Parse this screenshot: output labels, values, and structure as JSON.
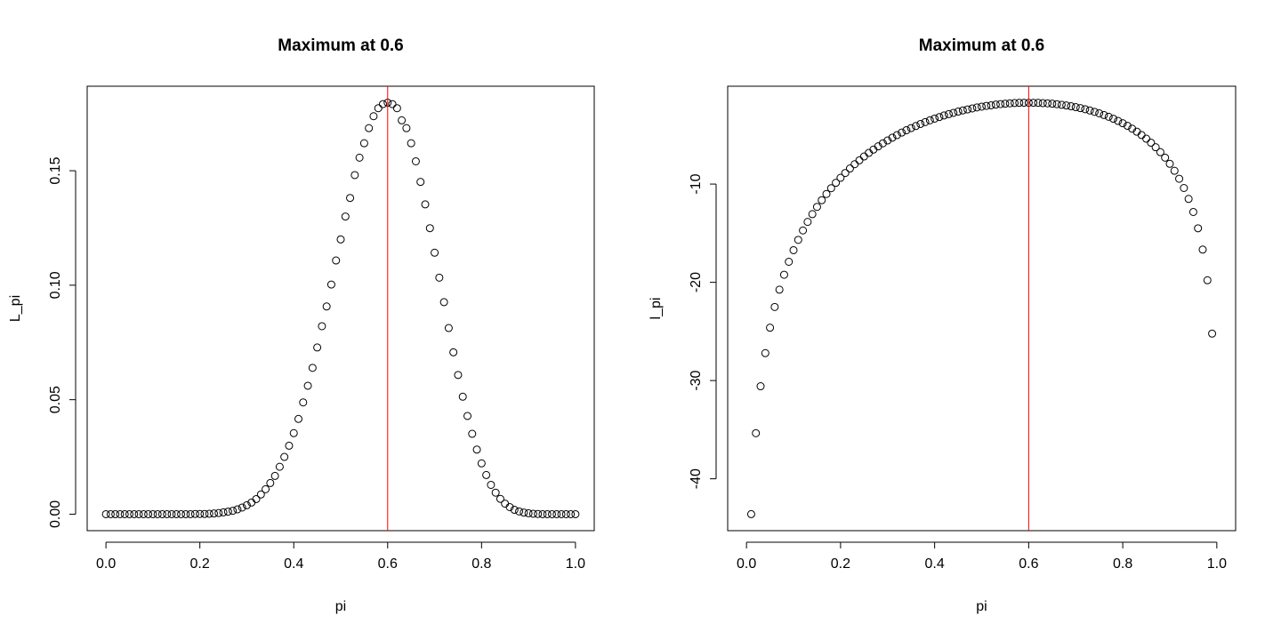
{
  "chart_data": [
    {
      "type": "scatter",
      "title": "Maximum at 0.6",
      "x_label": "pi",
      "y_label": "L_pi",
      "x": [
        0,
        0.01,
        0.02,
        0.03,
        0.04,
        0.05,
        0.06,
        0.07,
        0.08,
        0.09,
        0.1,
        0.11,
        0.12,
        0.13,
        0.14,
        0.15,
        0.16,
        0.17,
        0.18,
        0.19,
        0.2,
        0.21,
        0.22,
        0.23,
        0.24,
        0.25,
        0.26,
        0.27,
        0.28,
        0.29,
        0.3,
        0.31,
        0.32,
        0.33,
        0.34,
        0.35,
        0.36,
        0.37,
        0.38,
        0.39,
        0.4,
        0.41,
        0.42,
        0.43,
        0.44,
        0.45,
        0.46,
        0.47,
        0.48,
        0.49,
        0.5,
        0.51,
        0.52,
        0.53,
        0.54,
        0.55,
        0.56,
        0.57,
        0.58,
        0.59,
        0.6,
        0.61,
        0.62,
        0.63,
        0.64,
        0.65,
        0.66,
        0.67,
        0.68,
        0.69,
        0.7,
        0.71,
        0.72,
        0.73,
        0.74,
        0.75,
        0.76,
        0.77,
        0.78,
        0.79,
        0.8,
        0.81,
        0.82,
        0.83,
        0.84,
        0.85,
        0.86,
        0.87,
        0.88,
        0.89,
        0.9,
        0.91,
        0.92,
        0.93,
        0.94,
        0.95,
        0.96,
        0.97,
        0.98,
        0.99,
        1
      ],
      "y": [
        0,
        0,
        0,
        0,
        0,
        0,
        0,
        0,
        0,
        0,
        0,
        0,
        0,
        0,
        0,
        0,
        0,
        0,
        0,
        0.0001,
        0.0001,
        0.0001,
        0.0002,
        0.0003,
        0.0005,
        0.0008,
        0.0011,
        0.0015,
        0.0021,
        0.0029,
        0.0039,
        0.0051,
        0.0066,
        0.0086,
        0.0109,
        0.0136,
        0.0167,
        0.0207,
        0.025,
        0.0299,
        0.0354,
        0.0416,
        0.0488,
        0.0561,
        0.0639,
        0.0728,
        0.0821,
        0.0907,
        0.1003,
        0.1108,
        0.12,
        0.13,
        0.1381,
        0.1481,
        0.1557,
        0.162,
        0.1686,
        0.1738,
        0.1773,
        0.1791,
        0.1797,
        0.1791,
        0.1773,
        0.172,
        0.1686,
        0.162,
        0.1541,
        0.1451,
        0.1353,
        0.1249,
        0.1142,
        0.1033,
        0.0926,
        0.0813,
        0.0707,
        0.0608,
        0.0513,
        0.0429,
        0.0351,
        0.0282,
        0.0222,
        0.0171,
        0.0128,
        0.0094,
        0.0067,
        0.0046,
        0.0031,
        0.0019,
        0.0012,
        0.0007,
        0.0004,
        0.0002,
        0.0001,
        0,
        0,
        0,
        0,
        0,
        0,
        0,
        0
      ],
      "color": "#000000",
      "vline": 0.6,
      "vline_color": "#ff0000",
      "xlim": [
        -0.04,
        1.04
      ],
      "ylim": [
        -0.0072,
        0.1869
      ],
      "xticks": [
        {
          "value": 0,
          "label": "0.0"
        },
        {
          "value": 0.2,
          "label": "0.2"
        },
        {
          "value": 0.4,
          "label": "0.4"
        },
        {
          "value": 0.6,
          "label": "0.6"
        },
        {
          "value": 0.8,
          "label": "0.8"
        },
        {
          "value": 1,
          "label": "1.0"
        }
      ],
      "yticks": [
        {
          "value": 0,
          "label": "0.00"
        },
        {
          "value": 0.05,
          "label": "0.05"
        },
        {
          "value": 0.1,
          "label": "0.10"
        },
        {
          "value": 0.15,
          "label": "0.15"
        }
      ],
      "grid": false
    },
    {
      "type": "scatter",
      "title": "Maximum at 0.6",
      "x_label": "pi",
      "y_label": "l_pi",
      "x": [
        0.01,
        0.02,
        0.03,
        0.04,
        0.05,
        0.06,
        0.07,
        0.08,
        0.09,
        0.1,
        0.11,
        0.12,
        0.13,
        0.14,
        0.15,
        0.16,
        0.17,
        0.18,
        0.19,
        0.2,
        0.21,
        0.22,
        0.23,
        0.24,
        0.25,
        0.26,
        0.27,
        0.28,
        0.29,
        0.3,
        0.31,
        0.32,
        0.33,
        0.34,
        0.35,
        0.36,
        0.37,
        0.38,
        0.39,
        0.4,
        0.41,
        0.42,
        0.43,
        0.44,
        0.45,
        0.46,
        0.47,
        0.48,
        0.49,
        0.5,
        0.51,
        0.52,
        0.53,
        0.54,
        0.55,
        0.56,
        0.57,
        0.58,
        0.59,
        0.6,
        0.61,
        0.62,
        0.63,
        0.64,
        0.65,
        0.66,
        0.67,
        0.68,
        0.69,
        0.7,
        0.71,
        0.72,
        0.73,
        0.74,
        0.75,
        0.76,
        0.77,
        0.78,
        0.79,
        0.8,
        0.81,
        0.82,
        0.83,
        0.84,
        0.85,
        0.86,
        0.87,
        0.88,
        0.89,
        0.9,
        0.91,
        0.92,
        0.93,
        0.94,
        0.95,
        0.96,
        0.97,
        0.98,
        0.99
      ],
      "y": [
        -43.6,
        -35.36,
        -30.58,
        -27.21,
        -24.62,
        -22.51,
        -20.75,
        -19.23,
        -17.91,
        -16.73,
        -15.68,
        -14.72,
        -13.85,
        -13.06,
        -12.32,
        -11.64,
        -11.01,
        -10.42,
        -9.87,
        -9.36,
        -8.87,
        -8.41,
        -7.98,
        -7.58,
        -7.19,
        -6.83,
        -6.49,
        -6.16,
        -5.85,
        -5.56,
        -5.28,
        -5.02,
        -4.76,
        -4.52,
        -4.3,
        -4.09,
        -3.88,
        -3.69,
        -3.51,
        -3.34,
        -3.18,
        -3.02,
        -2.88,
        -2.75,
        -2.62,
        -2.5,
        -2.4,
        -2.3,
        -2.2,
        -2.12,
        -2.04,
        -1.98,
        -1.91,
        -1.86,
        -1.82,
        -1.78,
        -1.75,
        -1.73,
        -1.72,
        -1.72,
        -1.72,
        -1.73,
        -1.76,
        -1.78,
        -1.82,
        -1.87,
        -1.93,
        -2,
        -2.08,
        -2.17,
        -2.27,
        -2.38,
        -2.51,
        -2.65,
        -2.8,
        -2.97,
        -3.15,
        -3.35,
        -3.57,
        -3.81,
        -4.07,
        -4.36,
        -4.67,
        -5.01,
        -5.38,
        -5.79,
        -6.25,
        -6.75,
        -7.31,
        -7.94,
        -8.65,
        -9.46,
        -10.4,
        -11.51,
        -12.84,
        -14.5,
        -16.67,
        -19.79,
        -25.22
      ],
      "color": "#000000",
      "vline": 0.6,
      "vline_color": "#ff0000",
      "xlim": [
        -0.04,
        1.04
      ],
      "ylim": [
        -45.28,
        -0.04
      ],
      "xticks": [
        {
          "value": 0,
          "label": "0.0"
        },
        {
          "value": 0.2,
          "label": "0.2"
        },
        {
          "value": 0.4,
          "label": "0.4"
        },
        {
          "value": 0.6,
          "label": "0.6"
        },
        {
          "value": 0.8,
          "label": "0.8"
        },
        {
          "value": 1,
          "label": "1.0"
        }
      ],
      "yticks": [
        -40,
        -30,
        -20,
        -10
      ],
      "grid": false
    }
  ]
}
